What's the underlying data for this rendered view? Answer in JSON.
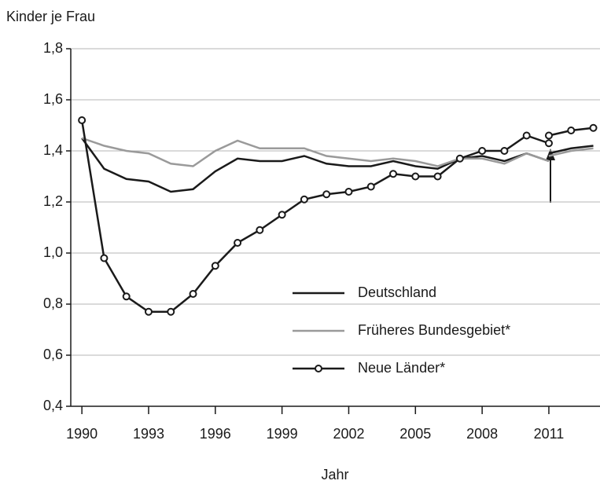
{
  "chart_data": {
    "type": "line",
    "y_label": "Kinder je Frau",
    "x_label": "Jahr",
    "x": [
      1990,
      1991,
      1992,
      1993,
      1994,
      1995,
      1996,
      1997,
      1998,
      1999,
      2000,
      2001,
      2002,
      2003,
      2004,
      2005,
      2006,
      2007,
      2008,
      2009,
      2010,
      2011,
      2011,
      2011,
      2012,
      2013
    ],
    "series": [
      {
        "name": "Deutschland",
        "color": "#1a1a1a",
        "markers": false,
        "values": [
          1.45,
          1.33,
          1.29,
          1.28,
          1.24,
          1.25,
          1.32,
          1.37,
          1.36,
          1.36,
          1.38,
          1.35,
          1.34,
          1.34,
          1.36,
          1.34,
          1.33,
          1.37,
          1.38,
          1.36,
          1.39,
          1.36,
          null,
          1.39,
          1.41,
          1.42
        ]
      },
      {
        "name": "Früheres Bundesgebiet*",
        "color": "#9a9a9a",
        "markers": false,
        "values": [
          1.45,
          1.42,
          1.4,
          1.39,
          1.35,
          1.34,
          1.4,
          1.44,
          1.41,
          1.41,
          1.41,
          1.38,
          1.37,
          1.36,
          1.37,
          1.36,
          1.34,
          1.37,
          1.37,
          1.35,
          1.39,
          1.36,
          null,
          1.38,
          1.4,
          1.41
        ]
      },
      {
        "name": "Neue Länder*",
        "color": "#1a1a1a",
        "markers": true,
        "values": [
          1.52,
          0.98,
          0.83,
          0.77,
          0.77,
          0.84,
          0.95,
          1.04,
          1.09,
          1.15,
          1.21,
          1.23,
          1.24,
          1.26,
          1.31,
          1.3,
          1.3,
          1.37,
          1.4,
          1.4,
          1.46,
          1.43,
          null,
          1.46,
          1.48,
          1.49
        ]
      }
    ],
    "xlim": [
      1989.5,
      2013.3
    ],
    "xticks": [
      1990,
      1993,
      1996,
      1999,
      2002,
      2005,
      2008,
      2011
    ],
    "ylim": [
      0.4,
      1.8
    ],
    "yticks": [
      {
        "value": 0.4,
        "label": "0,4"
      },
      {
        "value": 0.6,
        "label": "0,6"
      },
      {
        "value": 0.8,
        "label": "0,8"
      },
      {
        "value": 1.0,
        "label": "1,0"
      },
      {
        "value": 1.2,
        "label": "1,2"
      },
      {
        "value": 1.4,
        "label": "1,4"
      },
      {
        "value": 1.6,
        "label": "1,6"
      },
      {
        "value": 1.8,
        "label": "1,8"
      }
    ],
    "grid": true
  }
}
